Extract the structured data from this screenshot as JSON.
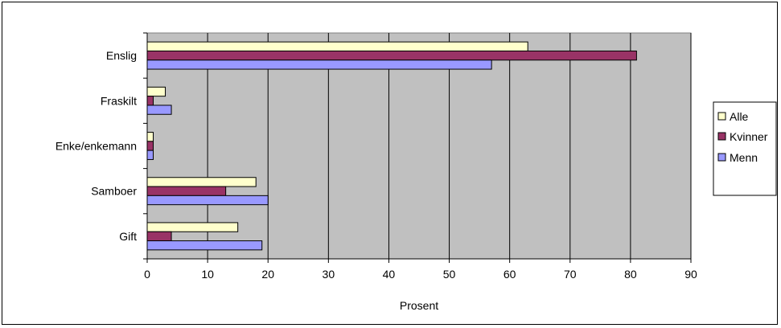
{
  "chart_data": {
    "type": "bar",
    "orientation": "horizontal",
    "categories": [
      "Gift",
      "Samboer",
      "Enke/enkemann",
      "Fraskilt",
      "Enslig"
    ],
    "series": [
      {
        "name": "Alle",
        "color": "#ffffcc",
        "values": [
          15,
          18,
          1,
          3,
          63
        ]
      },
      {
        "name": "Kvinner",
        "color": "#993366",
        "values": [
          4,
          13,
          1,
          1,
          81
        ]
      },
      {
        "name": "Menn",
        "color": "#9999ff",
        "values": [
          19,
          20,
          1,
          4,
          57
        ]
      }
    ],
    "xlabel": "Prosent",
    "xlim": [
      0,
      90
    ],
    "xticks": [
      0,
      10,
      20,
      30,
      40,
      50,
      60,
      70,
      80,
      90
    ],
    "grid": true,
    "legend_position": "right",
    "plot_background": "#c0c0c0"
  }
}
